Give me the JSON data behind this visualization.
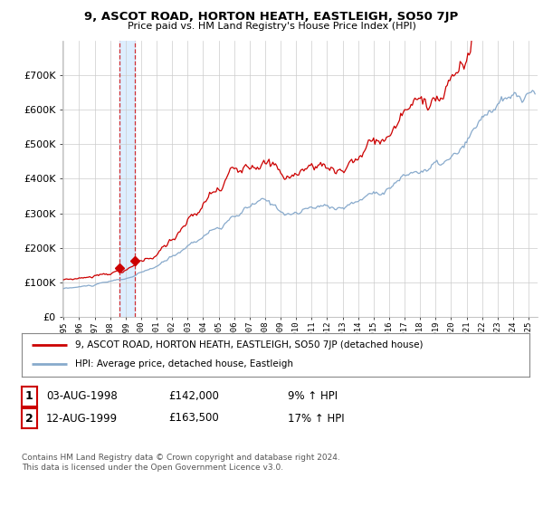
{
  "title": "9, ASCOT ROAD, HORTON HEATH, EASTLEIGH, SO50 7JP",
  "subtitle": "Price paid vs. HM Land Registry's House Price Index (HPI)",
  "ylim": [
    0,
    800000
  ],
  "yticks": [
    0,
    100000,
    200000,
    300000,
    400000,
    500000,
    600000,
    700000
  ],
  "sale1_date": 1998.58,
  "sale1_price": 142000,
  "sale2_date": 1999.62,
  "sale2_price": 163500,
  "property_color": "#cc0000",
  "hpi_color": "#88aacc",
  "dashed_color": "#cc0000",
  "highlight_color": "#ddeeff",
  "legend_property": "9, ASCOT ROAD, HORTON HEATH, EASTLEIGH, SO50 7JP (detached house)",
  "legend_hpi": "HPI: Average price, detached house, Eastleigh",
  "table_row1": [
    "1",
    "03-AUG-1998",
    "£142,000",
    "9% ↑ HPI"
  ],
  "table_row2": [
    "2",
    "12-AUG-1999",
    "£163,500",
    "17% ↑ HPI"
  ],
  "footnote": "Contains HM Land Registry data © Crown copyright and database right 2024.\nThis data is licensed under the Open Government Licence v3.0.",
  "background_color": "#ffffff",
  "grid_color": "#cccccc"
}
